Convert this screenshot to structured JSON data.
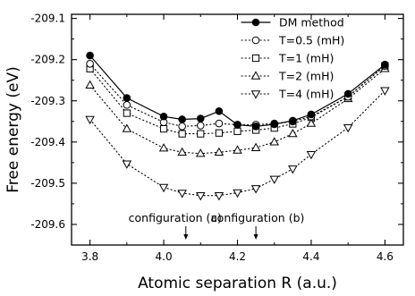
{
  "chart_data": {
    "type": "line",
    "xlabel": "Atomic separation R (a.u.)",
    "ylabel": "Free energy (eV)",
    "xlim": [
      3.75,
      4.65
    ],
    "ylim": [
      -209.65,
      -209.09
    ],
    "xticks": [
      3.8,
      4.0,
      4.2,
      4.4,
      4.6
    ],
    "xtick_labels": [
      "3.8",
      "4.0",
      "4.2",
      "4.4",
      "4.6"
    ],
    "yticks": [
      -209.1,
      -209.2,
      -209.3,
      -209.4,
      -209.5,
      -209.6
    ],
    "ytick_labels": [
      "-209.1",
      "-209.2",
      "-209.3",
      "-209.4",
      "-209.5",
      "-209.6"
    ],
    "grid": false,
    "legend_position": "top-right",
    "series": [
      {
        "name": "DM method",
        "marker": "filled-circle",
        "line": "solid",
        "x": [
          3.8,
          3.9,
          4.0,
          4.05,
          4.1,
          4.15,
          4.2,
          4.25,
          4.3,
          4.35,
          4.4,
          4.5,
          4.6
        ],
        "y": [
          -209.19,
          -209.293,
          -209.338,
          -209.345,
          -209.343,
          -209.325,
          -209.358,
          -209.362,
          -209.357,
          -209.348,
          -209.333,
          -209.283,
          -209.212
        ]
      },
      {
        "name": "T=0.5 (mH)",
        "marker": "open-circle",
        "line": "dotted",
        "x": [
          3.8,
          3.9,
          4.0,
          4.05,
          4.1,
          4.15,
          4.2,
          4.25,
          4.3,
          4.35,
          4.4,
          4.5,
          4.6
        ],
        "y": [
          -209.21,
          -209.31,
          -209.352,
          -209.362,
          -209.36,
          -209.355,
          -209.358,
          -209.358,
          -209.355,
          -209.35,
          -209.338,
          -209.29,
          -209.215
        ]
      },
      {
        "name": "T=1 (mH)",
        "marker": "open-square",
        "line": "dotted",
        "x": [
          3.8,
          3.9,
          4.0,
          4.05,
          4.1,
          4.15,
          4.2,
          4.25,
          4.3,
          4.35,
          4.4,
          4.5,
          4.6
        ],
        "y": [
          -209.222,
          -209.33,
          -209.368,
          -209.38,
          -209.38,
          -209.378,
          -209.374,
          -209.371,
          -209.366,
          -209.356,
          -209.34,
          -209.29,
          -209.215
        ]
      },
      {
        "name": "T=2 (mH)",
        "marker": "open-triangle-up",
        "line": "dotted",
        "x": [
          3.8,
          3.9,
          4.0,
          4.05,
          4.1,
          4.15,
          4.2,
          4.25,
          4.3,
          4.35,
          4.4,
          4.5,
          4.6
        ],
        "y": [
          -209.262,
          -209.368,
          -209.415,
          -209.425,
          -209.428,
          -209.425,
          -209.42,
          -209.414,
          -209.4,
          -209.38,
          -209.355,
          -209.295,
          -209.222
        ]
      },
      {
        "name": "T=4 (mH)",
        "marker": "open-triangle-down",
        "line": "dotted",
        "x": [
          3.8,
          3.9,
          4.0,
          4.05,
          4.1,
          4.15,
          4.2,
          4.25,
          4.3,
          4.35,
          4.4,
          4.5,
          4.6
        ],
        "y": [
          -209.345,
          -209.453,
          -209.51,
          -209.524,
          -209.53,
          -209.53,
          -209.523,
          -209.513,
          -209.49,
          -209.465,
          -209.43,
          -209.365,
          -209.275
        ]
      }
    ],
    "annotations": [
      {
        "text": "configuration (a)",
        "x": 4.06
      },
      {
        "text": "configuration (b)",
        "x": 4.25
      }
    ]
  }
}
